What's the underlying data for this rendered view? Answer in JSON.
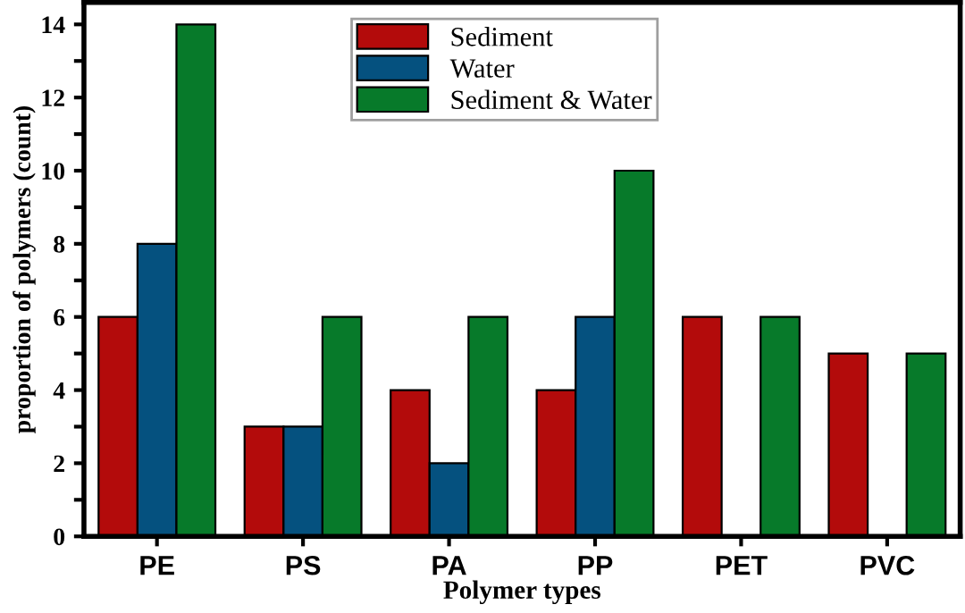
{
  "chart_data": {
    "type": "bar",
    "xlabel": "Polymer types",
    "ylabel": "proportion of polymers (count)",
    "categories": [
      "PE",
      "PS",
      "PA",
      "PP",
      "PET",
      "PVC"
    ],
    "series": [
      {
        "name": "Sediment",
        "color": "#b30b0b",
        "values": [
          6,
          3,
          4,
          4,
          6,
          5
        ]
      },
      {
        "name": "Water",
        "color": "#05517f",
        "values": [
          8,
          3,
          2,
          6,
          null,
          null
        ]
      },
      {
        "name": "Sediment & Water",
        "color": "#077a2a",
        "values": [
          14,
          6,
          6,
          10,
          6,
          5
        ]
      }
    ],
    "ylim": [
      0,
      14.6
    ],
    "yticks": [
      0,
      {
        "value": 1,
        "label": null
      },
      2,
      {
        "value": 3,
        "label": null
      },
      4,
      {
        "value": 5,
        "label": null
      },
      6,
      {
        "value": 7,
        "label": null
      },
      8,
      {
        "value": 9,
        "label": null
      },
      10,
      {
        "value": 11,
        "label": null
      },
      12,
      {
        "value": 13,
        "label": null
      },
      14
    ],
    "grid": false,
    "legend": "top"
  }
}
